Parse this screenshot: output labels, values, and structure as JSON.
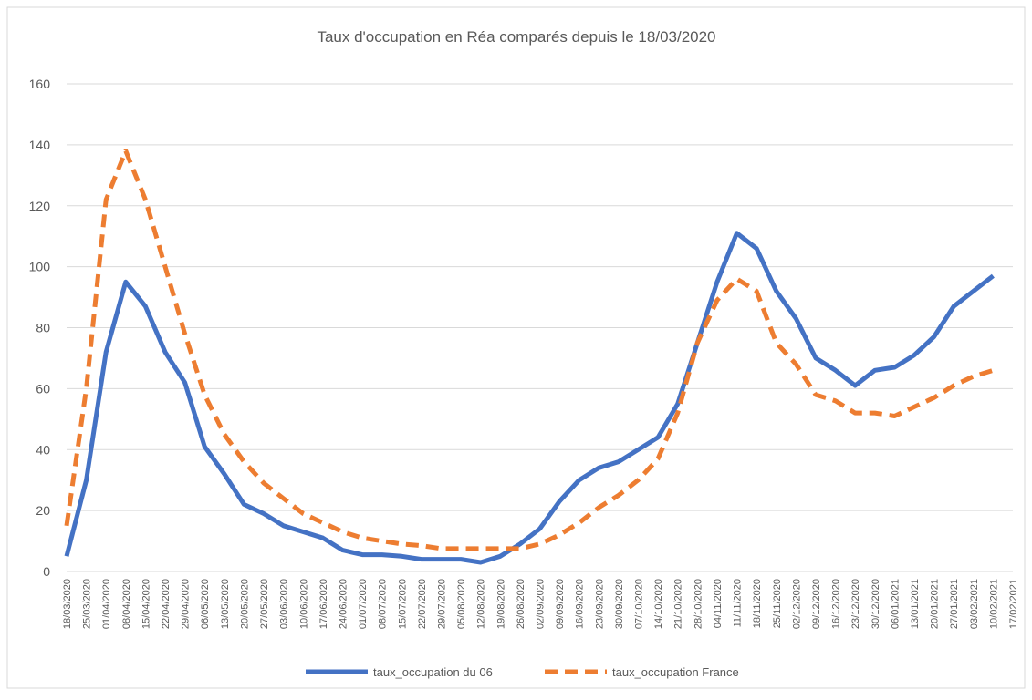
{
  "chart_data": {
    "type": "line",
    "title": "Taux d'occupation en Réa comparés depuis le 18/03/2020",
    "categories": [
      "18/03/2020",
      "25/03/2020",
      "01/04/2020",
      "08/04/2020",
      "15/04/2020",
      "22/04/2020",
      "29/04/2020",
      "06/05/2020",
      "13/05/2020",
      "20/05/2020",
      "27/05/2020",
      "03/06/2020",
      "10/06/2020",
      "17/06/2020",
      "24/06/2020",
      "01/07/2020",
      "08/07/2020",
      "15/07/2020",
      "22/07/2020",
      "29/07/2020",
      "05/08/2020",
      "12/08/2020",
      "19/08/2020",
      "26/08/2020",
      "02/09/2020",
      "09/09/2020",
      "16/09/2020",
      "23/09/2020",
      "30/09/2020",
      "07/10/2020",
      "14/10/2020",
      "21/10/2020",
      "28/10/2020",
      "04/11/2020",
      "11/11/2020",
      "18/11/2020",
      "25/11/2020",
      "02/12/2020",
      "09/12/2020",
      "16/12/2020",
      "23/12/2020",
      "30/12/2020",
      "06/01/2021",
      "13/01/2021",
      "20/01/2021",
      "27/01/2021",
      "03/02/2021",
      "10/02/2021",
      "17/02/2021"
    ],
    "series": [
      {
        "name": "taux_occupation du 06",
        "color": "#4472c4",
        "dash": "solid",
        "values": [
          5,
          30,
          72,
          95,
          87,
          72,
          62,
          41,
          32,
          22,
          19,
          15,
          13,
          11,
          7,
          5.5,
          5.5,
          5,
          4,
          4,
          4,
          3,
          5,
          9,
          14,
          23,
          30,
          34,
          36,
          40,
          44,
          55,
          75,
          95,
          111,
          106,
          92,
          83,
          70,
          66,
          61,
          66,
          67,
          71,
          77,
          87,
          92,
          97,
          null
        ]
      },
      {
        "name": "taux_occupation France",
        "color": "#ed7d31",
        "dash": "dashed",
        "values": [
          15,
          60,
          122,
          138,
          122,
          100,
          78,
          58,
          45,
          36,
          29,
          24,
          19,
          16,
          13,
          11,
          10,
          9,
          8.5,
          7.5,
          7.5,
          7.5,
          7.5,
          7.5,
          9,
          12,
          16,
          21,
          25,
          30,
          37,
          52,
          75,
          89,
          96,
          92,
          75,
          68,
          58,
          56,
          52,
          52,
          51,
          54,
          57,
          61,
          64,
          66,
          null
        ]
      }
    ],
    "ylim": [
      0,
      160
    ],
    "yticks": [
      0,
      20,
      40,
      60,
      80,
      100,
      120,
      140,
      160
    ],
    "grid": true,
    "legend": "bottom"
  }
}
